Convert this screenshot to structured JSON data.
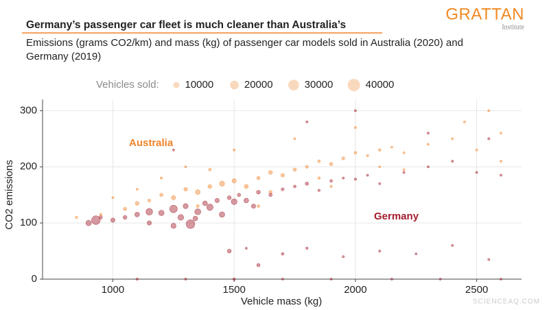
{
  "chart_data": {
    "type": "bubble",
    "title": "Germany’s passenger car fleet is much cleaner than Australia’s",
    "subtitle": [
      "Emissions (grams CO2/km) and mass (kg) of passenger car models sold in Australia (2020) and",
      "Germany (2019)"
    ],
    "logo": "GRATTAN",
    "logo_sub": "Institute",
    "watermark": "SCIENCEAQ.COM",
    "x_label": "Vehicle mass (kg)",
    "y_label": "CO2 emissions",
    "xlim": [
      710,
      2685
    ],
    "ylim": [
      0,
      320
    ],
    "xticks": [
      1000,
      1500,
      2000,
      2500
    ],
    "yticks": [
      0,
      100,
      200,
      300
    ],
    "grid": true,
    "legend": {
      "title": "Vehicles sold:",
      "sizes": [
        10000,
        20000,
        30000,
        40000
      ],
      "color": "#f7cfae"
    },
    "series": [
      {
        "name": "Australia",
        "color": "#f0832a",
        "x": [
          850,
          950,
          1050,
          1100,
          1150,
          1200,
          1250,
          1300,
          1350,
          1400,
          1450,
          1500,
          1550,
          1600,
          1650,
          1700,
          1750,
          1800,
          1850,
          1900,
          1950,
          2000,
          2050,
          2100,
          2150,
          2200,
          2300,
          2400,
          2500,
          2600,
          2550,
          2450,
          2000,
          1750,
          1500,
          1300,
          1200,
          1400,
          1650,
          1900,
          2200,
          1350,
          1100,
          1000,
          1600,
          2600,
          2100,
          1850
        ],
        "values": [
          110,
          115,
          125,
          135,
          140,
          150,
          145,
          160,
          155,
          165,
          170,
          175,
          165,
          180,
          190,
          185,
          195,
          200,
          210,
          205,
          215,
          225,
          220,
          230,
          235,
          225,
          240,
          250,
          230,
          260,
          300,
          280,
          270,
          250,
          230,
          200,
          180,
          195,
          155,
          165,
          195,
          130,
          160,
          145,
          130,
          210,
          200,
          180
        ],
        "sizes": [
          1500,
          2000,
          3000,
          4000,
          2500,
          3000,
          5000,
          3500,
          6000,
          4000,
          7000,
          5000,
          4500,
          3000,
          4000,
          3500,
          3000,
          2500,
          2000,
          3000,
          2500,
          2000,
          1500,
          1800,
          1200,
          1000,
          800,
          600,
          500,
          400,
          300,
          400,
          700,
          600,
          800,
          1000,
          1500,
          2000,
          3000,
          1500,
          1000,
          2500,
          1200,
          1000,
          2000,
          300,
          900,
          1800
        ]
      },
      {
        "name": "Germany",
        "color": "#a11d2c",
        "x": [
          900,
          930,
          950,
          1000,
          1050,
          1100,
          1150,
          1200,
          1250,
          1280,
          1300,
          1320,
          1350,
          1380,
          1400,
          1430,
          1450,
          1480,
          1500,
          1520,
          1550,
          1580,
          1600,
          1650,
          1700,
          1750,
          1800,
          1850,
          1900,
          1950,
          2000,
          2050,
          2100,
          2200,
          2300,
          2400,
          2500,
          2600,
          1250,
          1150,
          1340,
          1700,
          1800,
          1950,
          2100,
          2250,
          2400,
          2550,
          1550,
          1600,
          1100,
          1300,
          1500,
          1700,
          1900,
          2150,
          2350,
          2600,
          1480,
          1250,
          1800,
          2000,
          2300,
          2550
        ],
        "values": [
          100,
          105,
          110,
          105,
          110,
          115,
          120,
          118,
          125,
          110,
          130,
          98,
          120,
          135,
          128,
          140,
          115,
          145,
          138,
          150,
          140,
          130,
          155,
          150,
          160,
          165,
          170,
          158,
          175,
          180,
          178,
          185,
          170,
          190,
          200,
          210,
          190,
          185,
          95,
          100,
          108,
          45,
          55,
          40,
          50,
          45,
          60,
          35,
          55,
          25,
          0,
          0,
          0,
          0,
          0,
          0,
          0,
          0,
          50,
          230,
          280,
          300,
          260,
          250
        ],
        "sizes": [
          8000,
          20000,
          3000,
          5000,
          4000,
          6000,
          12000,
          8000,
          15000,
          9000,
          7000,
          20000,
          10000,
          6000,
          11000,
          5000,
          8000,
          4000,
          9000,
          3000,
          6000,
          5000,
          4000,
          3000,
          2500,
          2000,
          3000,
          1500,
          2000,
          1200,
          1500,
          1000,
          800,
          700,
          600,
          500,
          400,
          300,
          7000,
          5000,
          6000,
          2000,
          1500,
          1200,
          800,
          700,
          500,
          400,
          1000,
          3000,
          1500,
          1000,
          2000,
          1200,
          1000,
          800,
          600,
          500,
          4000,
          500,
          600,
          400,
          400,
          300
        ]
      }
    ]
  }
}
